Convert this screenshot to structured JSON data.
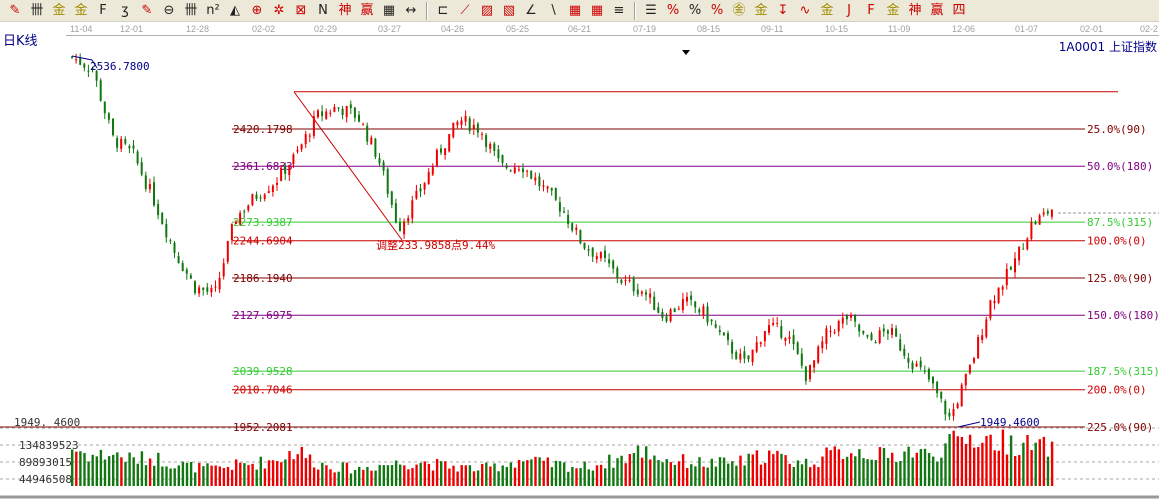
{
  "toolbar": {
    "icons": [
      {
        "name": "pen-icon",
        "glyph": "✎",
        "c": "red"
      },
      {
        "name": "parallel-lines-icon",
        "glyph": "卌"
      },
      {
        "name": "gold-ratio-icon",
        "glyph": "金",
        "c": "gold"
      },
      {
        "name": "gold-ratio-2-icon",
        "glyph": "金",
        "c": "gold"
      },
      {
        "name": "fibonacci-f-icon",
        "glyph": "F"
      },
      {
        "name": "spiral-icon",
        "glyph": "ʒ"
      },
      {
        "name": "marker-icon",
        "glyph": "✎",
        "c": "red"
      },
      {
        "name": "circle-cycle-icon",
        "glyph": "⊖"
      },
      {
        "name": "cycle-lines-icon",
        "glyph": "卌"
      },
      {
        "name": "square-cycle-icon",
        "glyph": "n²"
      },
      {
        "name": "triangle-icon",
        "glyph": "◭"
      },
      {
        "name": "target-icon",
        "glyph": "⊕",
        "c": "red"
      },
      {
        "name": "star-grid-icon",
        "glyph": "✲",
        "c": "red"
      },
      {
        "name": "box-grid-icon",
        "glyph": "⊠",
        "c": "red"
      },
      {
        "name": "wave-icon",
        "glyph": "N"
      },
      {
        "name": "shen-icon",
        "glyph": "神",
        "c": "red"
      },
      {
        "name": "ying-icon",
        "glyph": "赢",
        "c": "red"
      },
      {
        "name": "ruler-icon",
        "glyph": "▦"
      },
      {
        "name": "width-icon",
        "glyph": "↔"
      },
      {
        "name": "sep"
      },
      {
        "name": "box-icon",
        "glyph": "⊏"
      },
      {
        "name": "fan-icon",
        "glyph": "⟋",
        "c": "red"
      },
      {
        "name": "gann-box-icon",
        "glyph": "▨",
        "c": "red"
      },
      {
        "name": "gann-fan-icon",
        "glyph": "▧",
        "c": "red"
      },
      {
        "name": "angle-icon",
        "glyph": "∠"
      },
      {
        "name": "line-icon",
        "glyph": "∖"
      },
      {
        "name": "grid-icon",
        "glyph": "▦",
        "c": "red"
      },
      {
        "name": "grid-2-icon",
        "glyph": "▦",
        "c": "red"
      },
      {
        "name": "channels-icon",
        "glyph": "≡"
      },
      {
        "name": "sep"
      },
      {
        "name": "percent-lines-icon",
        "glyph": "☰"
      },
      {
        "name": "percent-fan-icon",
        "glyph": "%",
        "c": "red"
      },
      {
        "name": "percent-icon",
        "glyph": "%"
      },
      {
        "name": "percent-levels-icon",
        "glyph": "%",
        "c": "red"
      },
      {
        "name": "gold-circle-icon",
        "glyph": "㊎",
        "c": "gold"
      },
      {
        "name": "gold-levels-icon",
        "glyph": "金",
        "c": "gold"
      },
      {
        "name": "arrow-marker-icon",
        "glyph": "↧",
        "c": "red"
      },
      {
        "name": "sine-icon",
        "glyph": "∿",
        "c": "red"
      },
      {
        "name": "gold-line-icon",
        "glyph": "金",
        "c": "gold"
      },
      {
        "name": "j-angle-icon",
        "glyph": "J",
        "c": "red"
      },
      {
        "name": "f-angle-icon",
        "glyph": "F",
        "c": "red"
      },
      {
        "name": "gold-angle-icon",
        "glyph": "金",
        "c": "gold"
      },
      {
        "name": "shen-angle-icon",
        "glyph": "神",
        "c": "red"
      },
      {
        "name": "ying-angle-icon",
        "glyph": "赢",
        "c": "red"
      },
      {
        "name": "four-angle-icon",
        "glyph": "四",
        "c": "red"
      }
    ]
  },
  "header": {
    "period": "日K线",
    "symbol": "1A0001  上证指数"
  },
  "date_axis": [
    "11-04",
    "12-01",
    "12-28",
    "02-02",
    "02-29",
    "03-27",
    "04-26",
    "05-25",
    "06-21",
    "07-19",
    "08-15",
    "09-11",
    "10-15",
    "11-09",
    "12-06",
    "01-07",
    "02-01",
    "02-2"
  ],
  "colors": {
    "up": "#ee0000",
    "down": "#117711",
    "fib_25": "#800000",
    "fib_50": "#800080",
    "fib_875": "#33cc33",
    "fib_100": "#cc0000"
  },
  "chart_data": {
    "type": "candlestick",
    "approx_closes": [
      2533,
      2515,
      2405,
      2380,
      2310,
      2230,
      2172,
      2160,
      2280,
      2315,
      2340,
      2380,
      2440,
      2455,
      2440,
      2375,
      2265,
      2320,
      2385,
      2435,
      2420,
      2360,
      2365,
      2330,
      2295,
      2240,
      2215,
      2180,
      2165,
      2125,
      2150,
      2130,
      2085,
      2050,
      2110,
      2100,
      2030,
      2100,
      2125,
      2085,
      2105,
      2060,
      2025,
      1965,
      2045,
      2150,
      2200,
      2270,
      2295
    ],
    "approx_volumes": [
      100,
      80,
      85,
      70,
      75,
      60,
      50,
      45,
      55,
      60,
      70,
      95,
      60,
      50,
      45,
      55,
      60,
      65,
      55,
      50,
      45,
      55,
      70,
      60,
      55,
      50,
      60,
      75,
      95,
      70,
      65,
      60,
      60,
      65,
      85,
      70,
      60,
      80,
      95,
      90,
      75,
      95,
      80,
      110,
      130,
      120,
      115,
      105,
      100
    ],
    "volume_unit": "million",
    "high_label": "2536.7800",
    "low_label": "1949.4600",
    "adjust_label": "调整233.9858点9.44%",
    "fib_top": 2478.68,
    "fib_levels": [
      {
        "price": 2420.1798,
        "price_label": "2420.1798",
        "label": "25.0%(90)",
        "color": "#800000"
      },
      {
        "price": 2361.6833,
        "price_label": "2361.6833",
        "label": "50.0%(180)",
        "color": "#800080"
      },
      {
        "price": 2273.9387,
        "price_label": "2273.9387",
        "label": "87.5%(315)",
        "color": "#33cc33"
      },
      {
        "price": 2244.6904,
        "price_label": "2244.6904",
        "label": "100.0%(0)",
        "color": "#cc0000"
      },
      {
        "price": 2186.194,
        "price_label": "2186.1940",
        "label": "125.0%(90)",
        "color": "#800000"
      },
      {
        "price": 2127.6975,
        "price_label": "2127.6975",
        "label": "150.0%(180)",
        "color": "#800080"
      },
      {
        "price": 2039.9528,
        "price_label": "2039.9528",
        "label": "187.5%(315)",
        "color": "#33cc33"
      },
      {
        "price": 2010.7046,
        "price_label": "2010.7046",
        "label": "200.0%(0)",
        "color": "#cc0000"
      },
      {
        "price": 1952.2081,
        "price_label": "1952.2081",
        "label": "225.0%(90)",
        "color": "#800000"
      }
    ],
    "price_axis_bottom": "1949. 4600",
    "volume_ticks": [
      "134839523",
      "89893015",
      "44946508"
    ]
  }
}
